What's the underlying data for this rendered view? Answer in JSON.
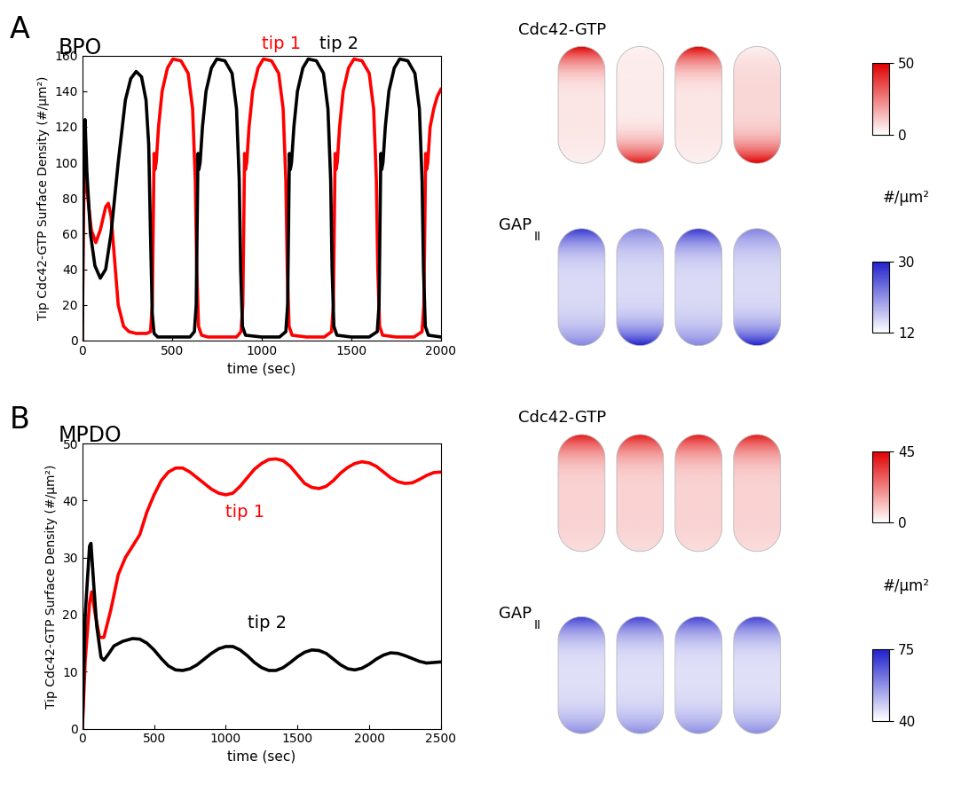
{
  "chart_data": [
    {
      "type": "line",
      "panel": "A",
      "title": "BPO",
      "x_label": "time (sec)",
      "y_label": "Tip Cdc42-GTP Surface Density (#/µm²)",
      "xlim": [
        0,
        2000
      ],
      "ylim": [
        0,
        160
      ],
      "xticks": [
        0,
        500,
        1000,
        1500,
        2000
      ],
      "yticks": [
        0,
        20,
        40,
        60,
        80,
        100,
        120,
        140,
        160
      ],
      "series": [
        {
          "name": "tip 1",
          "color": "#ff0000",
          "x": [
            0,
            5,
            12,
            25,
            50,
            75,
            100,
            130,
            145,
            160,
            180,
            200,
            230,
            260,
            300,
            360,
            380,
            390,
            400,
            405,
            412,
            425,
            445,
            475,
            505,
            550,
            590,
            615,
            630,
            638,
            648,
            665,
            700,
            800,
            860,
            885,
            895,
            905,
            910,
            917,
            930,
            950,
            980,
            1010,
            1055,
            1095,
            1120,
            1135,
            1143,
            1153,
            1170,
            1250,
            1350,
            1390,
            1400,
            1410,
            1415,
            1422,
            1435,
            1455,
            1485,
            1515,
            1560,
            1600,
            1625,
            1640,
            1648,
            1658,
            1675,
            1750,
            1850,
            1895,
            1905,
            1915,
            1920,
            1927,
            1940,
            1960,
            1980,
            2000
          ],
          "values": [
            0,
            60,
            104,
            85,
            62,
            55,
            62,
            75,
            77,
            70,
            45,
            20,
            8,
            5,
            4,
            4,
            5,
            20,
            105,
            96,
            100,
            120,
            140,
            153,
            158,
            157,
            150,
            130,
            90,
            40,
            8,
            3,
            2,
            2,
            2,
            5,
            20,
            105,
            96,
            100,
            120,
            140,
            153,
            158,
            157,
            150,
            130,
            90,
            40,
            8,
            3,
            2,
            2,
            5,
            20,
            105,
            96,
            100,
            120,
            140,
            153,
            158,
            157,
            150,
            130,
            90,
            40,
            8,
            3,
            2,
            2,
            5,
            20,
            105,
            96,
            100,
            120,
            130,
            137,
            141
          ]
        },
        {
          "name": "tip 2",
          "color": "#000000",
          "x": [
            0,
            5,
            15,
            25,
            45,
            70,
            100,
            130,
            160,
            200,
            240,
            270,
            300,
            330,
            355,
            370,
            380,
            390,
            400,
            420,
            500,
            600,
            625,
            635,
            645,
            650,
            657,
            670,
            690,
            720,
            750,
            795,
            835,
            860,
            875,
            883,
            893,
            910,
            1000,
            1100,
            1135,
            1145,
            1155,
            1160,
            1167,
            1180,
            1200,
            1230,
            1260,
            1305,
            1345,
            1370,
            1385,
            1393,
            1403,
            1420,
            1500,
            1600,
            1645,
            1655,
            1665,
            1670,
            1677,
            1690,
            1710,
            1740,
            1770,
            1815,
            1855,
            1880,
            1895,
            1903,
            1913,
            1930,
            2000
          ],
          "values": [
            0,
            80,
            124,
            95,
            60,
            42,
            35,
            40,
            60,
            100,
            135,
            147,
            151,
            148,
            135,
            110,
            60,
            15,
            4,
            2,
            2,
            2,
            5,
            20,
            105,
            96,
            100,
            120,
            140,
            153,
            158,
            157,
            150,
            130,
            90,
            40,
            8,
            3,
            2,
            2,
            5,
            20,
            105,
            96,
            100,
            120,
            140,
            153,
            158,
            157,
            150,
            130,
            90,
            40,
            8,
            3,
            2,
            2,
            5,
            20,
            105,
            96,
            100,
            120,
            140,
            153,
            158,
            157,
            150,
            130,
            90,
            40,
            8,
            3,
            2
          ]
        }
      ],
      "snapshots": {
        "unit": "#/µm²",
        "rows": [
          {
            "name": "Cdc42-GTP",
            "color": "#e00000",
            "range": [
              0,
              50
            ],
            "ticks": [
              0,
              50
            ],
            "cells": [
              {
                "top": 50,
                "middle": 5,
                "bottom": 3
              },
              {
                "top": 3,
                "middle": 4,
                "bottom": 45
              },
              {
                "top": 50,
                "middle": 5,
                "bottom": 3
              },
              {
                "top": 3,
                "middle": 8,
                "bottom": 50
              }
            ]
          },
          {
            "name": "GAP",
            "subscript": "II",
            "color": "#1f1fcc",
            "range": [
              12,
              30
            ],
            "ticks": [
              12,
              30
            ],
            "cells": [
              {
                "top": 28,
                "middle": 15,
                "bottom": 22
              },
              {
                "top": 22,
                "middle": 15,
                "bottom": 30
              },
              {
                "top": 28,
                "middle": 15,
                "bottom": 22
              },
              {
                "top": 22,
                "middle": 15,
                "bottom": 30
              }
            ]
          }
        ]
      }
    },
    {
      "type": "line",
      "panel": "B",
      "title": "MPDO",
      "x_label": "time (sec)",
      "y_label": "Tip Cdc42-GTP Surface Density (#/µm²)",
      "xlim": [
        0,
        2500
      ],
      "ylim": [
        0,
        50
      ],
      "xticks": [
        0,
        500,
        1000,
        1500,
        2000,
        2500
      ],
      "yticks": [
        0,
        10,
        20,
        30,
        40,
        50
      ],
      "series": [
        {
          "name": "tip 1",
          "color": "#ff0000",
          "x": [
            0,
            20,
            50,
            65,
            90,
            120,
            150,
            200,
            250,
            300,
            350,
            400,
            450,
            500,
            550,
            600,
            650,
            700,
            750,
            800,
            850,
            900,
            950,
            1000,
            1050,
            1100,
            1150,
            1200,
            1250,
            1300,
            1350,
            1400,
            1450,
            1500,
            1550,
            1600,
            1650,
            1700,
            1750,
            1800,
            1850,
            1900,
            1950,
            2000,
            2050,
            2100,
            2150,
            2200,
            2250,
            2300,
            2350,
            2400,
            2450,
            2500
          ],
          "values": [
            0,
            12,
            22,
            24,
            20,
            16,
            16,
            21,
            27,
            30,
            32,
            34,
            38,
            41,
            43.5,
            45,
            45.7,
            45.7,
            45,
            44,
            43,
            42,
            41.3,
            41,
            41.3,
            42.5,
            44,
            45.5,
            46.5,
            47.2,
            47.3,
            47,
            46,
            44.5,
            43,
            42.3,
            42.1,
            42.5,
            43.5,
            44.8,
            45.8,
            46.5,
            46.8,
            46.6,
            46,
            45,
            44,
            43.3,
            43,
            43.1,
            43.7,
            44.4,
            44.9,
            45
          ]
        },
        {
          "name": "tip 2",
          "color": "#000000",
          "x": [
            0,
            20,
            50,
            60,
            80,
            100,
            130,
            150,
            180,
            220,
            280,
            350,
            400,
            450,
            500,
            550,
            600,
            650,
            700,
            750,
            800,
            850,
            900,
            950,
            1000,
            1050,
            1100,
            1150,
            1200,
            1250,
            1300,
            1350,
            1400,
            1450,
            1500,
            1550,
            1600,
            1650,
            1700,
            1750,
            1800,
            1850,
            1900,
            1950,
            2000,
            2050,
            2100,
            2150,
            2200,
            2250,
            2300,
            2350,
            2400,
            2450,
            2500
          ],
          "values": [
            0,
            20,
            32,
            32.5,
            25,
            18,
            12.5,
            12,
            13,
            14.5,
            15.3,
            15.8,
            15.7,
            15,
            13.8,
            12.3,
            11,
            10.3,
            10.2,
            10.5,
            11.2,
            12.2,
            13.2,
            14,
            14.4,
            14.4,
            13.8,
            12.8,
            11.6,
            10.7,
            10.2,
            10.2,
            10.7,
            11.6,
            12.6,
            13.4,
            13.8,
            13.7,
            13.2,
            12.2,
            11.2,
            10.5,
            10.3,
            10.6,
            11.3,
            12.2,
            12.9,
            13.3,
            13.2,
            12.8,
            12.3,
            11.8,
            11.5,
            11.6,
            11.7
          ]
        }
      ],
      "snapshots": {
        "unit": "#/µm²",
        "rows": [
          {
            "name": "Cdc42-GTP",
            "color": "#e00000",
            "range": [
              0,
              45
            ],
            "ticks": [
              0,
              45
            ],
            "cells": [
              {
                "top": 40,
                "middle": 8,
                "bottom": 6
              },
              {
                "top": 40,
                "middle": 8,
                "bottom": 6
              },
              {
                "top": 40,
                "middle": 8,
                "bottom": 6
              },
              {
                "top": 40,
                "middle": 8,
                "bottom": 6
              }
            ]
          },
          {
            "name": "GAP",
            "subscript": "II",
            "color": "#1f1fcc",
            "range": [
              40,
              75
            ],
            "ticks": [
              40,
              75
            ],
            "cells": [
              {
                "top": 70,
                "middle": 45,
                "bottom": 58
              },
              {
                "top": 70,
                "middle": 45,
                "bottom": 58
              },
              {
                "top": 70,
                "middle": 45,
                "bottom": 58
              },
              {
                "top": 70,
                "middle": 45,
                "bottom": 58
              }
            ]
          }
        ]
      }
    }
  ]
}
